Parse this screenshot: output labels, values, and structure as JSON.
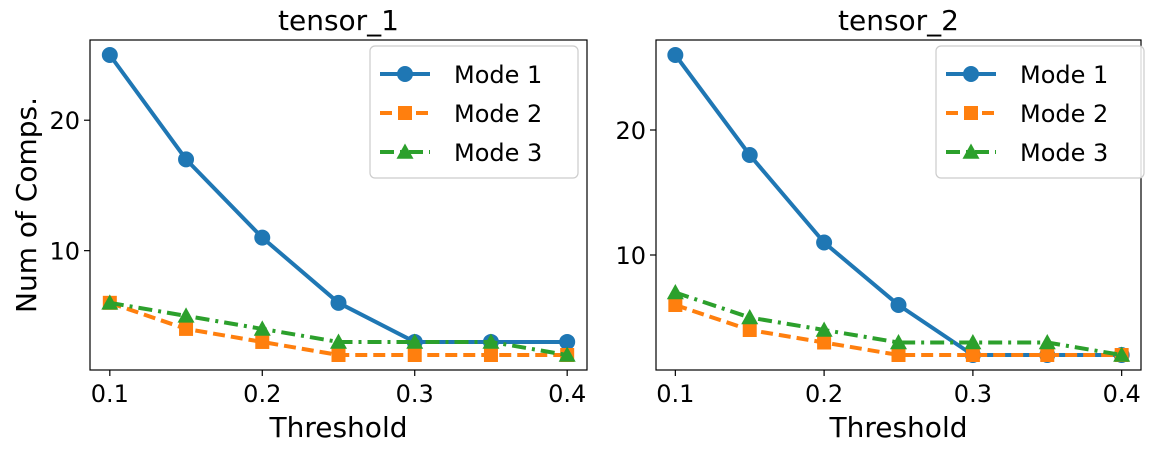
{
  "chart_data": [
    {
      "type": "line",
      "title": "tensor_1",
      "xlabel": "Threshold",
      "ylabel": "Num of Comps.",
      "x": [
        0.1,
        0.15,
        0.2,
        0.25,
        0.3,
        0.35,
        0.4
      ],
      "xticks": [
        "0.1",
        "0.2",
        "0.3",
        "0.4"
      ],
      "yticks": [
        "10",
        "20"
      ],
      "xlim": [
        0.087,
        0.413
      ],
      "ylim": [
        0.85,
        26.15
      ],
      "legend_position": "upper right",
      "series": [
        {
          "name": "Mode 1",
          "values": [
            25,
            17,
            11,
            6,
            3,
            3,
            3
          ],
          "color": "#1f77b4",
          "linestyle": "solid",
          "marker": "circle"
        },
        {
          "name": "Mode 2",
          "values": [
            6,
            4,
            3,
            2,
            2,
            2,
            2
          ],
          "color": "#ff7f0e",
          "linestyle": "dashed",
          "marker": "square"
        },
        {
          "name": "Mode 3",
          "values": [
            6,
            5,
            4,
            3,
            3,
            3,
            2
          ],
          "color": "#2ca02c",
          "linestyle": "dashdot",
          "marker": "triangle"
        }
      ]
    },
    {
      "type": "line",
      "title": "tensor_2",
      "xlabel": "Threshold",
      "ylabel": "",
      "x": [
        0.1,
        0.15,
        0.2,
        0.25,
        0.3,
        0.35,
        0.4
      ],
      "xticks": [
        "0.1",
        "0.2",
        "0.3",
        "0.4"
      ],
      "yticks": [
        "10",
        "20"
      ],
      "xlim": [
        0.087,
        0.413
      ],
      "ylim": [
        0.8,
        27.2
      ],
      "legend_position": "upper right",
      "series": [
        {
          "name": "Mode 1",
          "values": [
            26,
            18,
            11,
            6,
            2,
            2,
            2
          ],
          "color": "#1f77b4",
          "linestyle": "solid",
          "marker": "circle"
        },
        {
          "name": "Mode 2",
          "values": [
            6,
            4,
            3,
            2,
            2,
            2,
            2
          ],
          "color": "#ff7f0e",
          "linestyle": "dashed",
          "marker": "square"
        },
        {
          "name": "Mode 3",
          "values": [
            7,
            5,
            4,
            3,
            3,
            3,
            2
          ],
          "color": "#2ca02c",
          "linestyle": "dashdot",
          "marker": "triangle"
        }
      ]
    }
  ]
}
